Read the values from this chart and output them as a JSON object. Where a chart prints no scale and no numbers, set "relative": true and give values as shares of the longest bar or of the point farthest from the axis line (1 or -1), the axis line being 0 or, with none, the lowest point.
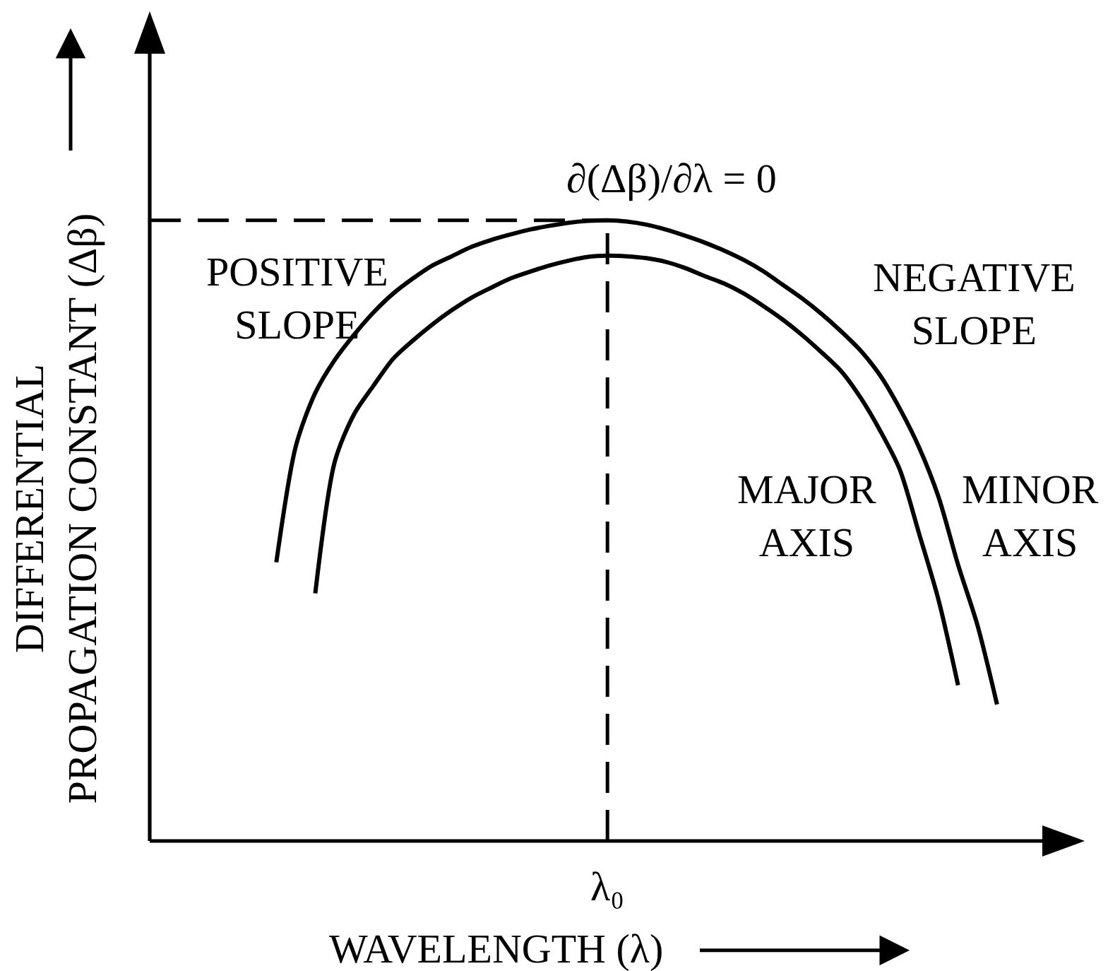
{
  "chart_data": {
    "type": "line",
    "relative": true,
    "xlabel": "WAVELENGTH (λ)",
    "ylabel": "DIFFERENTIAL\nPROPAGATION CONSTANT (Δβ)",
    "categories": [
      null,
      null,
      null,
      null,
      null,
      null,
      null,
      null,
      null,
      null,
      null,
      null,
      null,
      null,
      null,
      null,
      null,
      null,
      null,
      null,
      null,
      null,
      null,
      null,
      null,
      null,
      null,
      null,
      null,
      null,
      null,
      null,
      null,
      null,
      null,
      null,
      null,
      null,
      null,
      null,
      null,
      null,
      null,
      null,
      null,
      null,
      null,
      null
    ],
    "series": [
      {
        "name": "MAJOR\nAXIS",
        "color": "#000000",
        "values": [
          null,
          null,
          null,
          null,
          null,
          null,
          null,
          null,
          0.399,
          0.611,
          0.688,
          0.734,
          0.777,
          0.806,
          0.832,
          0.855,
          0.875,
          0.891,
          0.906,
          0.917,
          0.927,
          0.935,
          0.941,
          0.943,
          0.942,
          0.939,
          0.933,
          0.923,
          0.91,
          0.898,
          0.882,
          0.862,
          0.84,
          0.815,
          0.787,
          0.757,
          0.714,
          0.661,
          0.599,
          0.495,
          0.388,
          0.251,
          null,
          null,
          null,
          null,
          null,
          null
        ]
      },
      {
        "name": "MINOR\nAXIS",
        "color": "#000000",
        "values": [
          null,
          null,
          null,
          null,
          null,
          null,
          0.449,
          0.636,
          0.722,
          0.775,
          0.816,
          0.852,
          0.882,
          0.906,
          0.927,
          0.942,
          0.957,
          0.968,
          0.977,
          0.985,
          0.991,
          0.996,
          0.999,
          1.0,
          0.998,
          0.993,
          0.985,
          0.975,
          0.964,
          0.951,
          0.936,
          0.918,
          0.896,
          0.874,
          0.849,
          0.821,
          0.79,
          0.75,
          0.697,
          0.634,
          0.554,
          0.445,
          0.347,
          0.22,
          null,
          null,
          null,
          null
        ]
      }
    ],
    "ref_lines": [
      {
        "axis": "y",
        "value": 1,
        "color": "#000000",
        "line_style": "dashed"
      }
    ],
    "annotations": [
      "∂(Δβ)/∂λ = 0",
      "POSITIVE\nSLOPE",
      "NEGATIVE\nSLOPE",
      "λ₀"
    ]
  }
}
